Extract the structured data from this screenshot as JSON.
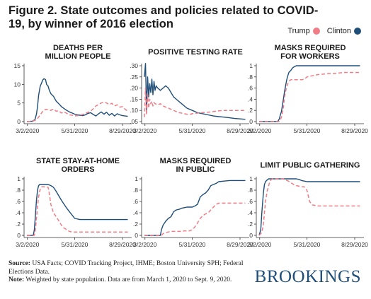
{
  "title": "Figure 2. State outcomes and policies related to COVID-19, by winner of 2016 election",
  "legend": {
    "trump_label": "Trump",
    "clinton_label": "Clinton",
    "trump_color": "#f07c86",
    "clinton_color": "#1f4e79"
  },
  "footer": {
    "source_label": "Source:",
    "source_text": "USA Facts; COVID Tracking Project, IHME; Boston University SPH; Federal Elections Data.",
    "note_label": "Note:",
    "note_text": "Weighted by state population. Data are from March 1, 2020 to Sept. 9, 2020."
  },
  "brand": "BROOKINGS",
  "chart_data": [
    {
      "type": "line",
      "title_lines": [
        "DEATHS PER",
        "MILLION PEOPLE"
      ],
      "x_ticks": [
        "3/2/2020",
        "5/31/2020",
        "8/29/2020"
      ],
      "xlim": [
        0,
        192
      ],
      "ylim": [
        0,
        15
      ],
      "y_ticks": [
        0,
        5,
        10,
        15
      ],
      "y_tick_labels": [
        "0",
        "5",
        "10",
        "15"
      ],
      "series": [
        {
          "key": "clinton",
          "x": [
            0,
            10,
            15,
            18,
            20,
            22,
            25,
            28,
            30,
            32,
            35,
            37,
            40,
            42,
            45,
            50,
            55,
            60,
            65,
            70,
            75,
            80,
            85,
            90,
            95,
            100,
            105,
            110,
            115,
            120,
            125,
            130,
            135,
            140,
            145,
            150,
            155,
            160,
            165,
            170,
            175,
            180,
            185,
            190
          ],
          "y": [
            0,
            0.1,
            0.5,
            2,
            4,
            7,
            9.5,
            10.5,
            11.2,
            11.5,
            11.3,
            10,
            9.5,
            8.5,
            7.5,
            6.8,
            5.5,
            4.8,
            4,
            3.5,
            3,
            2.6,
            2.3,
            2,
            1.8,
            1.7,
            1.6,
            1.8,
            2.2,
            2.4,
            1.9,
            1.5,
            2.1,
            2.6,
            2.0,
            2.5,
            1.7,
            2.2,
            1.5,
            2.1,
            1.8,
            1.6,
            1.5,
            1.4
          ]
        },
        {
          "key": "trump",
          "x": [
            0,
            10,
            15,
            20,
            25,
            30,
            35,
            40,
            45,
            50,
            55,
            60,
            65,
            70,
            75,
            80,
            85,
            90,
            95,
            100,
            105,
            110,
            115,
            120,
            125,
            130,
            135,
            140,
            145,
            150,
            155,
            160,
            165,
            170,
            175,
            180,
            185,
            190
          ],
          "y": [
            0,
            0.1,
            0.3,
            0.8,
            1.8,
            2.8,
            3.3,
            3.2,
            3.0,
            3.4,
            2.8,
            2.9,
            2.3,
            2.6,
            2.2,
            1.8,
            1.7,
            1.5,
            1.6,
            1.7,
            1.9,
            2.2,
            2.5,
            2.8,
            3.5,
            4.2,
            4.6,
            5.0,
            5.2,
            5.0,
            4.6,
            4.9,
            4.2,
            4.5,
            3.9,
            4.0,
            3.3,
            2.8
          ]
        }
      ]
    },
    {
      "type": "line",
      "title_lines": [
        "POSITIVE TESTING RATE"
      ],
      "x_ticks": [
        "3/2/2020",
        "5/31/2020",
        "8/29/2020"
      ],
      "xlim": [
        0,
        192
      ],
      "ylim": [
        0.05,
        0.3
      ],
      "y_ticks": [
        0.05,
        0.1,
        0.15,
        0.2,
        0.25,
        0.3
      ],
      "y_tick_labels": [
        ".05",
        ".10",
        ".15",
        ".20",
        ".25",
        ".30"
      ],
      "series": [
        {
          "key": "clinton",
          "x": [
            0,
            2,
            4,
            6,
            8,
            10,
            12,
            14,
            16,
            18,
            20,
            22,
            25,
            30,
            35,
            40,
            45,
            50,
            55,
            60,
            70,
            80,
            90,
            100,
            110,
            120,
            130,
            140,
            150,
            160,
            170,
            180,
            190
          ],
          "y": [
            0.25,
            0.31,
            0.1,
            0.25,
            0.16,
            0.22,
            0.18,
            0.24,
            0.17,
            0.23,
            0.19,
            0.21,
            0.2,
            0.19,
            0.2,
            0.21,
            0.2,
            0.18,
            0.16,
            0.15,
            0.13,
            0.11,
            0.1,
            0.09,
            0.085,
            0.08,
            0.075,
            0.072,
            0.07,
            0.067,
            0.064,
            0.062,
            0.06
          ]
        },
        {
          "key": "trump",
          "x": [
            0,
            2,
            4,
            6,
            8,
            10,
            12,
            14,
            16,
            18,
            20,
            25,
            30,
            35,
            40,
            45,
            50,
            55,
            60,
            65,
            70,
            75,
            80,
            85,
            90,
            100,
            110,
            120,
            130,
            140,
            150,
            160,
            170,
            180,
            190
          ],
          "y": [
            0.07,
            0.2,
            0.08,
            0.17,
            0.11,
            0.15,
            0.13,
            0.14,
            0.12,
            0.135,
            0.13,
            0.125,
            0.13,
            0.12,
            0.115,
            0.11,
            0.105,
            0.1,
            0.095,
            0.09,
            0.088,
            0.085,
            0.083,
            0.082,
            0.085,
            0.088,
            0.09,
            0.092,
            0.095,
            0.098,
            0.1,
            0.1,
            0.1,
            0.1,
            0.1
          ]
        }
      ]
    },
    {
      "type": "line",
      "title_lines": [
        "MASKS REQUIRED",
        "FOR WORKERS"
      ],
      "x_ticks": [
        "3/2/2020",
        "5/31/2020",
        "8/29/2020"
      ],
      "xlim": [
        0,
        192
      ],
      "ylim": [
        0,
        1
      ],
      "y_ticks": [
        0,
        0.2,
        0.4,
        0.6,
        0.8,
        1
      ],
      "y_tick_labels": [
        "0",
        ".2",
        ".4",
        ".6",
        ".8",
        "1"
      ],
      "series": [
        {
          "key": "clinton",
          "x": [
            0,
            35,
            38,
            40,
            42,
            44,
            46,
            48,
            50,
            52,
            54,
            56,
            58,
            60,
            62,
            64,
            66,
            68,
            70,
            72,
            75,
            80,
            85,
            90,
            100,
            110,
            120,
            130,
            140,
            150,
            160,
            170,
            180,
            190
          ],
          "y": [
            0,
            0,
            0.05,
            0.12,
            0.18,
            0.3,
            0.42,
            0.55,
            0.65,
            0.75,
            0.82,
            0.88,
            0.9,
            0.92,
            0.95,
            0.97,
            0.98,
            0.99,
            1,
            1,
            1,
            1,
            1,
            1,
            1,
            1,
            1,
            1,
            1,
            1,
            1,
            1,
            1,
            1
          ]
        },
        {
          "key": "trump",
          "x": [
            0,
            38,
            40,
            42,
            44,
            46,
            48,
            50,
            52,
            54,
            56,
            58,
            60,
            62,
            64,
            66,
            68,
            70,
            72,
            75,
            80,
            85,
            90,
            100,
            110,
            120,
            130,
            140,
            150,
            160,
            170,
            180,
            190
          ],
          "y": [
            0,
            0,
            0.03,
            0.08,
            0.15,
            0.28,
            0.45,
            0.55,
            0.62,
            0.68,
            0.72,
            0.74,
            0.75,
            0.75,
            0.75,
            0.75,
            0.75,
            0.75,
            0.75,
            0.75,
            0.75,
            0.76,
            0.8,
            0.82,
            0.84,
            0.85,
            0.86,
            0.86,
            0.87,
            0.88,
            0.88,
            0.88,
            0.88
          ]
        }
      ]
    },
    {
      "type": "line",
      "title_lines": [
        "STATE STAY-AT-HOME",
        "ORDERS"
      ],
      "x_ticks": [
        "3/2/2020",
        "5/31/2020",
        "8/29/2020"
      ],
      "xlim": [
        0,
        192
      ],
      "ylim": [
        0,
        1
      ],
      "y_ticks": [
        0,
        0.2,
        0.4,
        0.6,
        0.8,
        1
      ],
      "y_tick_labels": [
        "0",
        ".2",
        ".4",
        ".6",
        ".8",
        "1"
      ],
      "series": [
        {
          "key": "clinton",
          "x": [
            0,
            12,
            14,
            16,
            18,
            20,
            22,
            24,
            26,
            30,
            35,
            40,
            45,
            50,
            55,
            60,
            65,
            70,
            75,
            80,
            85,
            90,
            100,
            110,
            120,
            130,
            140,
            150,
            160,
            170,
            180,
            190
          ],
          "y": [
            0,
            0,
            0.1,
            0.35,
            0.62,
            0.8,
            0.88,
            0.9,
            0.9,
            0.9,
            0.9,
            0.9,
            0.88,
            0.85,
            0.78,
            0.7,
            0.62,
            0.55,
            0.48,
            0.42,
            0.36,
            0.3,
            0.28,
            0.28,
            0.28,
            0.28,
            0.28,
            0.28,
            0.28,
            0.28,
            0.28,
            0.28
          ]
        },
        {
          "key": "trump",
          "x": [
            0,
            14,
            16,
            18,
            20,
            22,
            24,
            26,
            28,
            30,
            35,
            40,
            42,
            45,
            50,
            55,
            60,
            65,
            70,
            75,
            80,
            85,
            90,
            100,
            110,
            120,
            130,
            140,
            150,
            160,
            170,
            180,
            190
          ],
          "y": [
            0,
            0,
            0.1,
            0.3,
            0.5,
            0.68,
            0.78,
            0.84,
            0.86,
            0.86,
            0.86,
            0.85,
            0.75,
            0.55,
            0.4,
            0.33,
            0.26,
            0.18,
            0.13,
            0.1,
            0.07,
            0.06,
            0.06,
            0.06,
            0.06,
            0.06,
            0.06,
            0.06,
            0.06,
            0.06,
            0.06,
            0.06,
            0.06
          ]
        }
      ]
    },
    {
      "type": "line",
      "title_lines": [
        "MASKS REQUIRED",
        "IN PUBLIC"
      ],
      "x_ticks": [
        "3/2/2020",
        "5/31/2020",
        "8/29/2020"
      ],
      "xlim": [
        0,
        192
      ],
      "ylim": [
        0,
        1
      ],
      "y_ticks": [
        0,
        0.2,
        0.4,
        0.6,
        0.8,
        1
      ],
      "y_tick_labels": [
        "0",
        ".2",
        ".4",
        ".6",
        ".8",
        "1"
      ],
      "series": [
        {
          "key": "clinton",
          "x": [
            0,
            30,
            32,
            35,
            40,
            45,
            50,
            55,
            60,
            65,
            70,
            75,
            80,
            85,
            90,
            95,
            100,
            105,
            110,
            115,
            120,
            125,
            130,
            135,
            140,
            150,
            160,
            170,
            180,
            190
          ],
          "y": [
            0,
            0,
            0.1,
            0.18,
            0.25,
            0.3,
            0.33,
            0.42,
            0.45,
            0.46,
            0.48,
            0.49,
            0.5,
            0.5,
            0.5,
            0.52,
            0.55,
            0.68,
            0.72,
            0.75,
            0.8,
            0.88,
            0.9,
            0.92,
            0.95,
            0.96,
            0.97,
            0.97,
            0.97,
            0.97
          ]
        },
        {
          "key": "trump",
          "x": [
            0,
            32,
            35,
            40,
            45,
            50,
            55,
            60,
            65,
            70,
            75,
            80,
            85,
            90,
            95,
            100,
            105,
            110,
            115,
            120,
            125,
            130,
            135,
            140,
            150,
            160,
            170,
            180,
            190
          ],
          "y": [
            0,
            0,
            0.03,
            0.05,
            0.06,
            0.07,
            0.07,
            0.07,
            0.07,
            0.07,
            0.08,
            0.08,
            0.08,
            0.1,
            0.15,
            0.22,
            0.3,
            0.35,
            0.38,
            0.4,
            0.45,
            0.5,
            0.55,
            0.57,
            0.57,
            0.57,
            0.57,
            0.57,
            0.57
          ]
        }
      ]
    },
    {
      "type": "line",
      "title_lines": [
        "LIMIT PUBLIC GATHERING"
      ],
      "x_ticks": [
        "3/2/2020",
        "5/31/2020",
        "8/29/2020"
      ],
      "xlim": [
        0,
        192
      ],
      "ylim": [
        0,
        1
      ],
      "y_ticks": [
        0,
        0.2,
        0.4,
        0.6,
        0.8,
        1
      ],
      "y_tick_labels": [
        "0",
        ".2",
        ".4",
        ".6",
        ".8",
        "1"
      ],
      "series": [
        {
          "key": "clinton",
          "x": [
            0,
            3,
            5,
            8,
            10,
            12,
            15,
            18,
            20,
            25,
            30,
            35,
            40,
            45,
            50,
            55,
            60,
            65,
            70,
            75,
            80,
            85,
            90,
            100,
            110,
            120,
            130,
            140,
            150,
            160,
            170,
            180,
            190
          ],
          "y": [
            0,
            0.1,
            0.4,
            0.75,
            0.9,
            0.95,
            0.98,
            1,
            1,
            1,
            1,
            1,
            1,
            1,
            1,
            1,
            1,
            1,
            1,
            0.99,
            0.97,
            0.96,
            0.95,
            0.95,
            0.95,
            0.95,
            0.95,
            0.95,
            0.95,
            0.95,
            0.95,
            0.95,
            0.95
          ]
        },
        {
          "key": "trump",
          "x": [
            0,
            5,
            8,
            10,
            12,
            15,
            18,
            20,
            22,
            25,
            30,
            35,
            40,
            45,
            50,
            55,
            60,
            65,
            70,
            75,
            80,
            85,
            90,
            95,
            100,
            110,
            120,
            130,
            140,
            150,
            160,
            170,
            180,
            190
          ],
          "y": [
            0,
            0.05,
            0.2,
            0.4,
            0.6,
            0.78,
            0.88,
            0.95,
            0.98,
            1,
            1,
            1,
            1,
            1,
            0.98,
            0.96,
            0.93,
            0.9,
            0.88,
            0.87,
            0.86,
            0.86,
            0.8,
            0.6,
            0.54,
            0.52,
            0.52,
            0.52,
            0.52,
            0.52,
            0.52,
            0.52,
            0.52,
            0.52
          ]
        }
      ]
    }
  ]
}
